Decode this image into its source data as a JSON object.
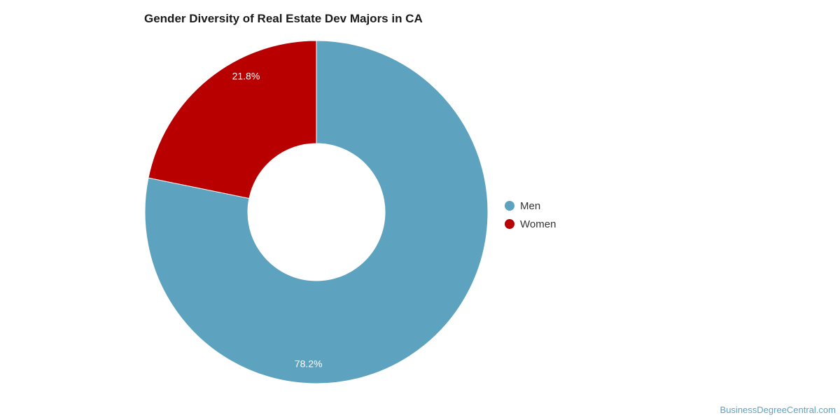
{
  "chart_data": {
    "type": "pie",
    "title": "Gender Diversity of Real Estate Dev Majors in CA",
    "categories": [
      "Men",
      "Women"
    ],
    "values": [
      78.2,
      21.8
    ],
    "data_labels": [
      "78.2%",
      "21.8%"
    ],
    "colors": [
      "#5da2be",
      "#b80000"
    ],
    "legend": {
      "placement": "right",
      "items": [
        "Men",
        "Women"
      ]
    },
    "donut": true
  },
  "source": "BusinessDegreeCentral.com"
}
